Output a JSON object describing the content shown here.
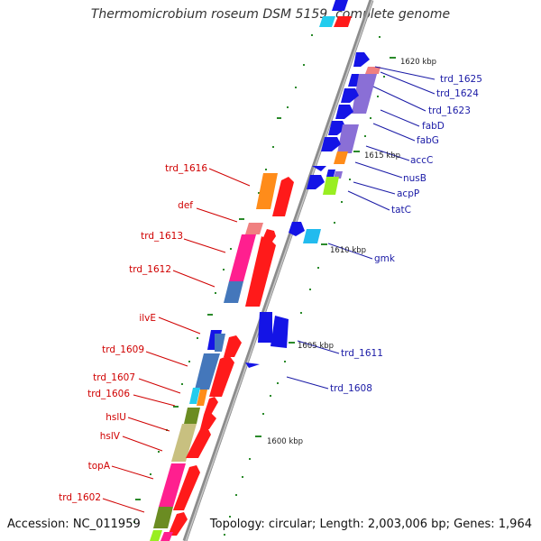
{
  "title": "Thermomicrobium roseum DSM 5159, complete genome",
  "accession": "Accession: NC_011959",
  "summary": "Topology: circular; Length: 2,003,006 bp; Genes: 1,964",
  "colors": {
    "backbone": "#8c8c8c",
    "forward_gene": "#1414e6",
    "reverse_gene": "#ff1a1a",
    "forward_label": "#1a1aa6",
    "reverse_label": "#d00000",
    "tick": "#2a8a2a"
  },
  "scale_labels": [
    "1620 kbp",
    "1615 kbp",
    "1610 kbp",
    "1605 kbp",
    "1600 kbp"
  ],
  "forward_labels": [
    "trd_1625",
    "trd_1624",
    "trd_1623",
    "fabD",
    "fabG",
    "accC",
    "nusB",
    "acpP",
    "tatC",
    "gmk",
    "trd_1611",
    "trd_1608"
  ],
  "reverse_labels": [
    "trd_1616",
    "def",
    "trd_1613",
    "trd_1612",
    "ilvE",
    "trd_1609",
    "trd_1607",
    "trd_1606",
    "hslU",
    "hslV",
    "topA",
    "trd_1602"
  ]
}
